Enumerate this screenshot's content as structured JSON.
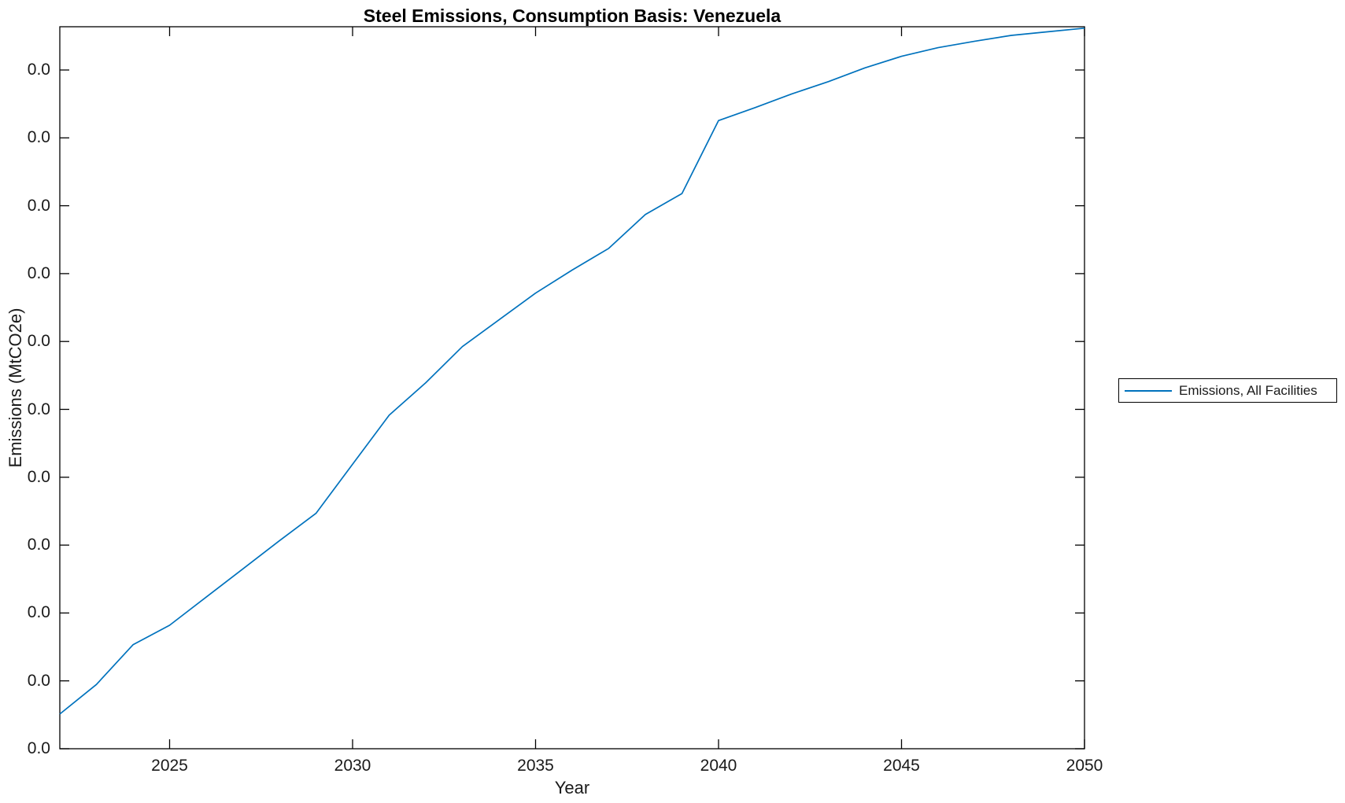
{
  "figure": {
    "background": "#ffffff",
    "axis_color": "#000000",
    "text_color": "#1a1a1a"
  },
  "chart_data": {
    "type": "line",
    "title": "Steel Emissions, Consumption Basis: Venezuela",
    "xlabel": "Year",
    "ylabel": "Emissions (MtCO2e)",
    "x_tick_labels": [
      "2025",
      "2030",
      "2035",
      "2040",
      "2045",
      "2050"
    ],
    "y_tick_labels": [
      "0.0",
      "0.0",
      "0.0",
      "0.0",
      "0.0",
      "0.0",
      "0.0",
      "0.0",
      "0.0",
      "0.0",
      "0.0"
    ],
    "xlim": [
      2022,
      2050
    ],
    "grid": false,
    "legend_position": "right-outside",
    "series": [
      {
        "name": "Emissions, All Facilities",
        "color": "#0072BD",
        "x": [
          2022,
          2023,
          2024,
          2025,
          2026,
          2027,
          2028,
          2029,
          2030,
          2031,
          2032,
          2033,
          2034,
          2035,
          2036,
          2037,
          2038,
          2039,
          2040,
          2041,
          2042,
          2043,
          2044,
          2045,
          2046,
          2047,
          2048,
          2049,
          2050
        ],
        "y_fraction_of_plot_height": [
          0.048,
          0.089,
          0.144,
          0.171,
          0.21,
          0.249,
          0.288,
          0.326,
          0.394,
          0.462,
          0.507,
          0.557,
          0.594,
          0.631,
          0.663,
          0.693,
          0.74,
          0.769,
          0.87,
          0.888,
          0.907,
          0.924,
          0.943,
          0.959,
          0.971,
          0.98,
          0.988,
          0.993,
          0.998
        ]
      }
    ],
    "note": "Every y-axis tick label displays 0.0 (magnitudes below the displayed precision), so series y values are recorded as the fraction of plot height above the bottom axis (0 = bottom 0.0 tick, 1 = top of plot box)."
  }
}
